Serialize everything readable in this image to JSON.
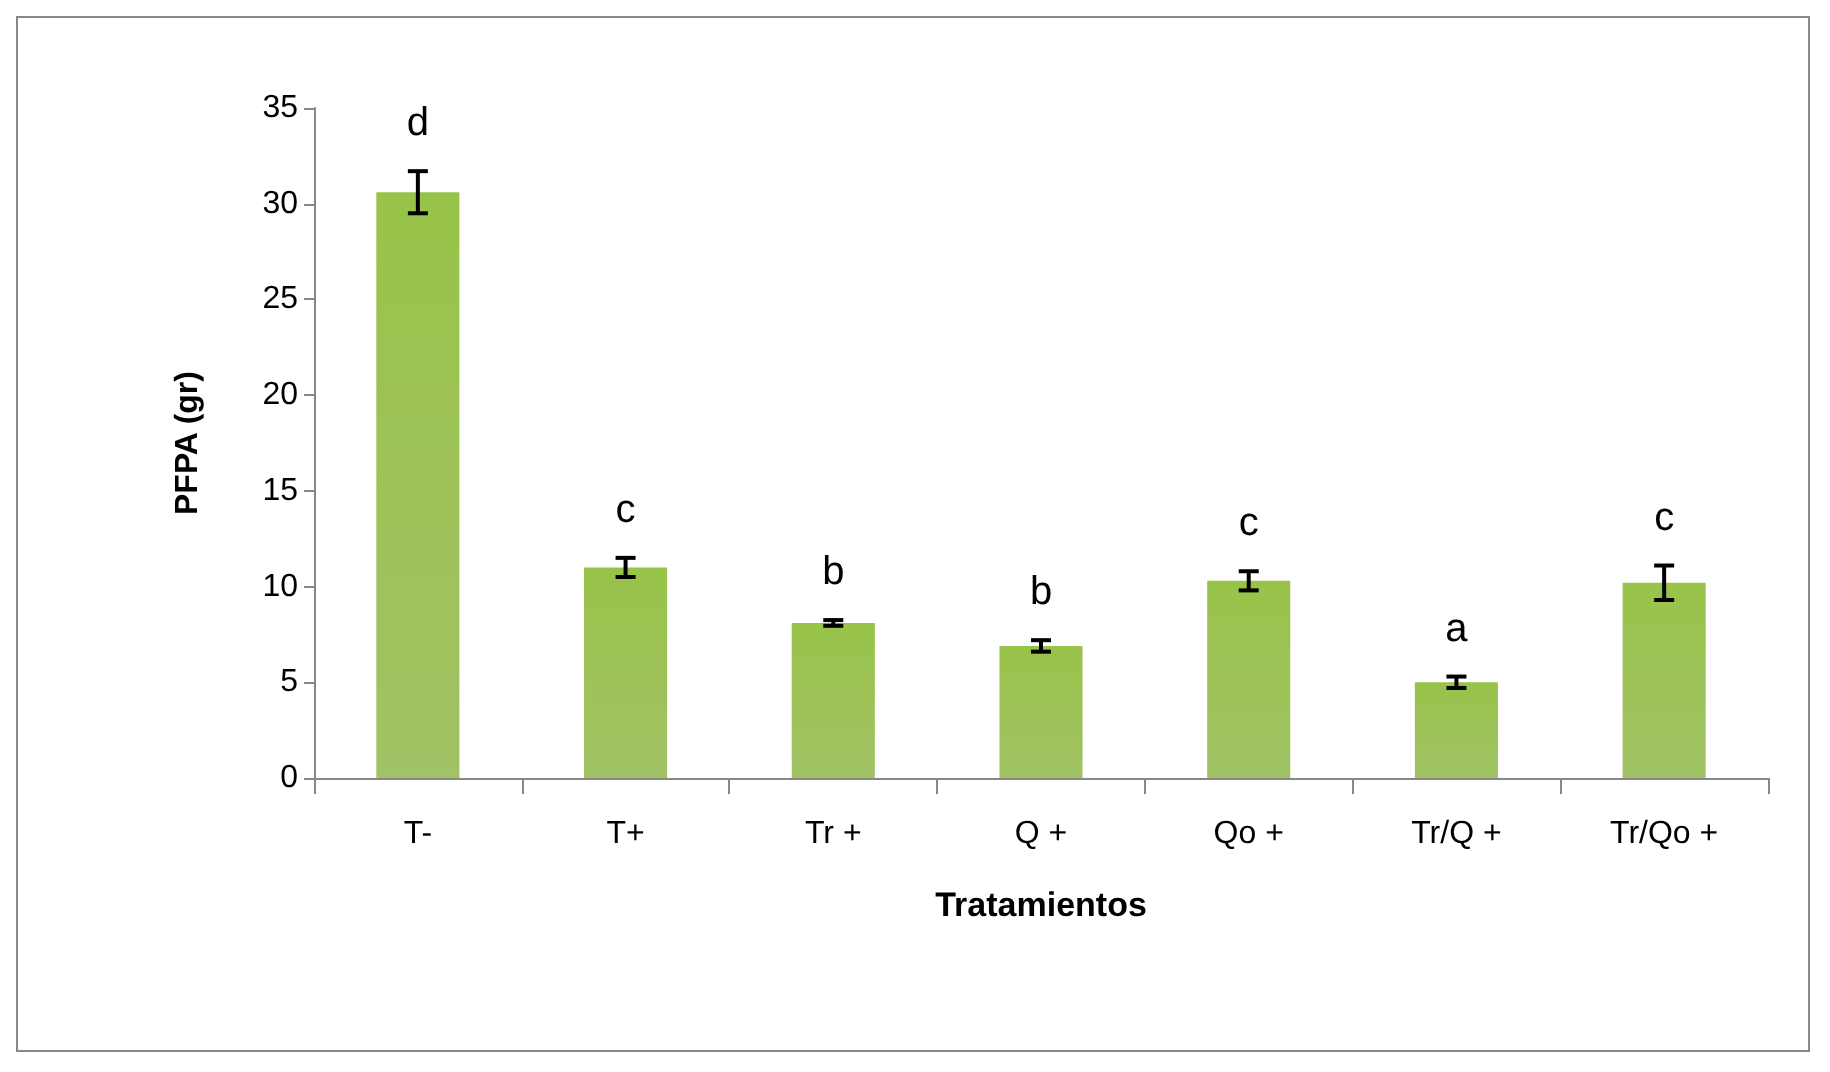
{
  "chart_data": {
    "type": "bar",
    "xlabel": "Tratamientos",
    "ylabel": "PFPA (gr)",
    "categories": [
      "T-",
      "T+",
      "Tr +",
      "Q +",
      "Qo +",
      "Tr/Q +",
      "Tr/Qo +"
    ],
    "values": [
      30.6,
      11.0,
      8.1,
      6.9,
      10.3,
      5.0,
      10.2
    ],
    "errors": [
      1.1,
      0.5,
      0.15,
      0.3,
      0.5,
      0.3,
      0.9
    ],
    "color": "#8db544",
    "ylim": [
      0,
      35
    ],
    "yticks": [
      0,
      5,
      10,
      15,
      20,
      25,
      30,
      35
    ],
    "grid": false,
    "annotations": [
      "d",
      "c",
      "b",
      "b",
      "c",
      "a",
      "c"
    ]
  }
}
